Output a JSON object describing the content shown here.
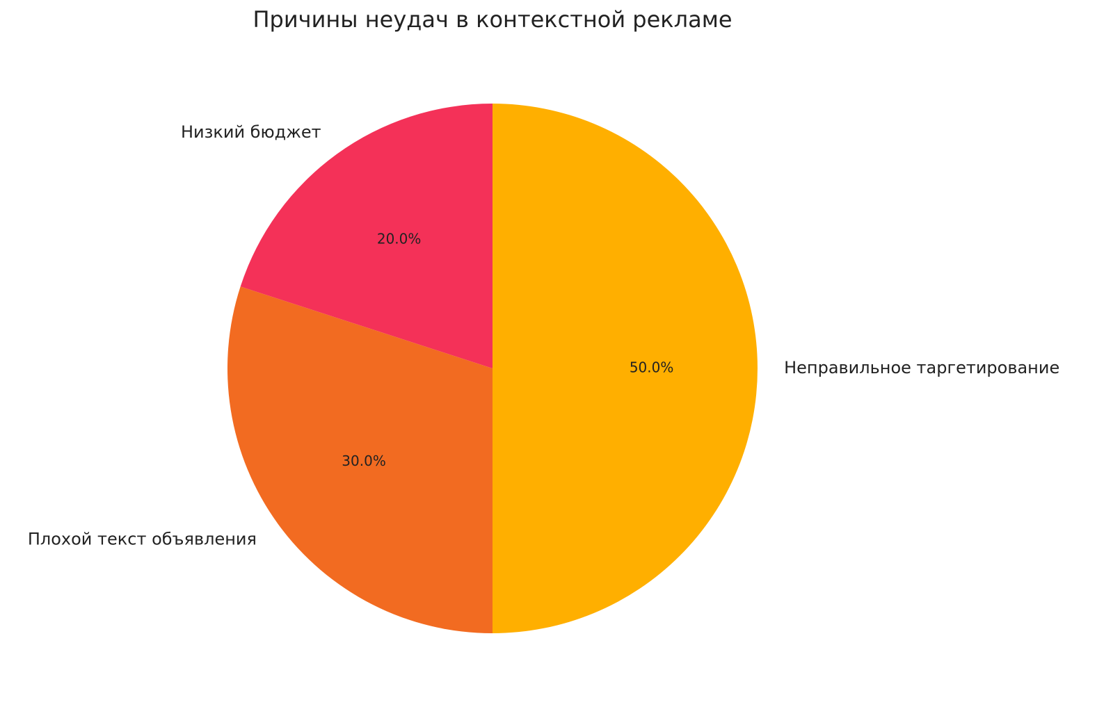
{
  "chart_data": {
    "type": "pie",
    "title": "Причины неудач в контекстной рекламе",
    "categories": [
      "Низкий бюджет",
      "Плохой текст объявления",
      "Неправильное таргетирование"
    ],
    "values": [
      20,
      30,
      50
    ],
    "value_labels": [
      "20.0%",
      "30.0%",
      "50.0%"
    ],
    "colors": [
      "#f43158",
      "#f26b21",
      "#ffaf00"
    ]
  }
}
